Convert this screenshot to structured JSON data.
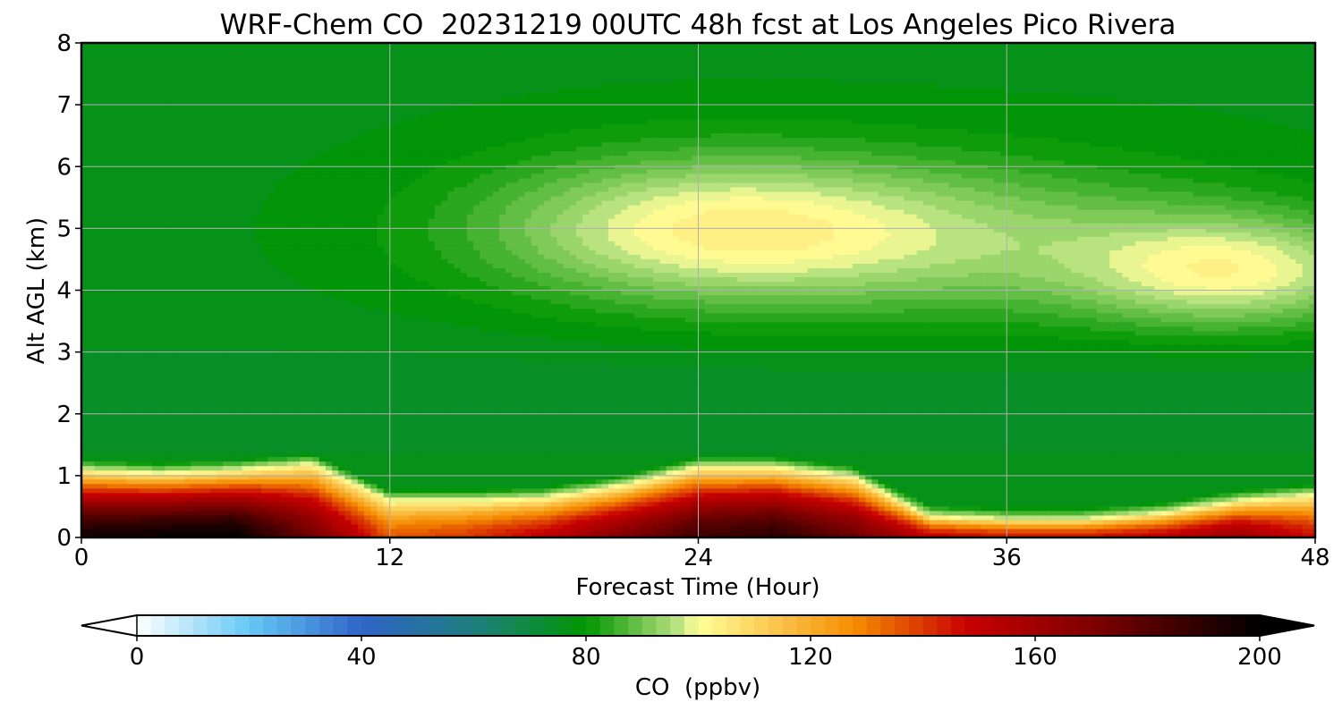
{
  "chart_data": {
    "type": "heatmap",
    "subtype": "filled-contour time-height cross section",
    "title": "WRF-Chem CO  20231219 00UTC 48h fcst at Los Angeles Pico Rivera",
    "xlabel": "Forecast Time (Hour)",
    "ylabel": "Alt AGL (km)",
    "xlim": [
      0,
      48
    ],
    "ylim": [
      0,
      8
    ],
    "xticks": [
      0,
      12,
      24,
      36,
      48
    ],
    "yticks": [
      0,
      1,
      2,
      3,
      4,
      5,
      6,
      7,
      8
    ],
    "grid": true,
    "colorbar": {
      "label": "CO  (ppbv)",
      "vmin": 0,
      "vmax": 200,
      "ticks": [
        0,
        40,
        80,
        120,
        160,
        200
      ],
      "levels": 80,
      "extend": "both",
      "orientation": "horizontal",
      "colors": {
        "low": "#ffffff",
        "light_blue": "#66c8f5",
        "blue": "#2f64c8",
        "teal": "#1e7e7e",
        "green": "#009600",
        "light_green": "#b4e07e",
        "pale_yellow": "#ffff99",
        "orange": "#f58c00",
        "red": "#c80000",
        "dark_red": "#780000",
        "high": "#000000"
      }
    },
    "field": {
      "times": [
        0,
        3,
        6,
        9,
        12,
        15,
        18,
        21,
        24,
        27,
        30,
        33,
        36,
        39,
        42,
        45,
        48
      ],
      "boundary_layer_top_km": [
        1.1,
        1.05,
        1.1,
        1.2,
        0.6,
        0.6,
        0.65,
        0.85,
        1.15,
        1.15,
        1.0,
        0.35,
        0.3,
        0.3,
        0.4,
        0.6,
        0.7
      ],
      "surface_co_ppbv": [
        195,
        198,
        200,
        172,
        135,
        140,
        150,
        168,
        185,
        190,
        175,
        150,
        145,
        145,
        150,
        162,
        145
      ],
      "background_co_ppbv": 77,
      "elevated_plume": {
        "center_hour": 24.5,
        "center_alt_km": 5.0,
        "peak_co_ppbv": 101,
        "secondary_center_hour": 45,
        "secondary_center_alt_km": 4.3
      }
    }
  }
}
